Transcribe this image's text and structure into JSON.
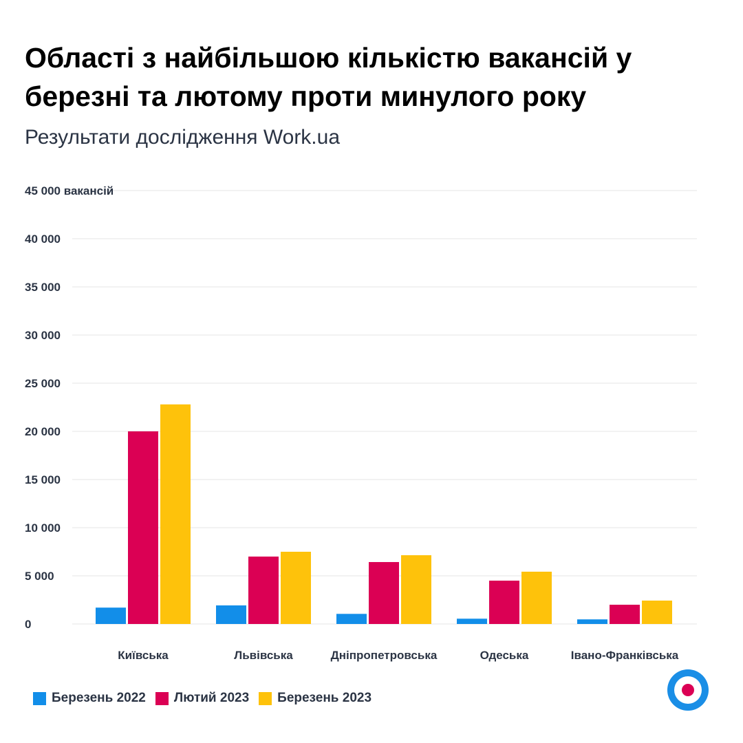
{
  "chart_data": {
    "type": "bar",
    "title": "Області з найбільшою кількістю вакансій у березні та лютому проти минулого року",
    "subtitle": "Результати дослідження Work.ua",
    "ylabel_unit": "вакансій",
    "ylim": [
      0,
      45000
    ],
    "yticks": [
      0,
      5000,
      10000,
      15000,
      20000,
      25000,
      30000,
      35000,
      40000,
      45000
    ],
    "ytick_labels": [
      "0",
      "5 000",
      "10 000",
      "15 000",
      "20 000",
      "25 000",
      "30 000",
      "35 000",
      "40 000",
      "45 000"
    ],
    "grid": true,
    "legend_position": "bottom-left",
    "categories": [
      "Київська",
      "Львівська",
      "Дніпропетровська",
      "Одеська",
      "Івано-Франківська"
    ],
    "series": [
      {
        "name": "Березень 2022",
        "color": "#128ee9",
        "values": [
          1700,
          1930,
          1050,
          550,
          480
        ]
      },
      {
        "name": "Лютий 2023",
        "color": "#db0054",
        "values": [
          20000,
          7000,
          6430,
          4500,
          2000
        ]
      },
      {
        "name": "Березень 2023",
        "color": "#fec20b",
        "values": [
          22800,
          7500,
          7140,
          5430,
          2430
        ]
      }
    ]
  },
  "logo": {
    "colors": [
      "#1a8ee6",
      "#ffffff",
      "#db0054"
    ]
  }
}
